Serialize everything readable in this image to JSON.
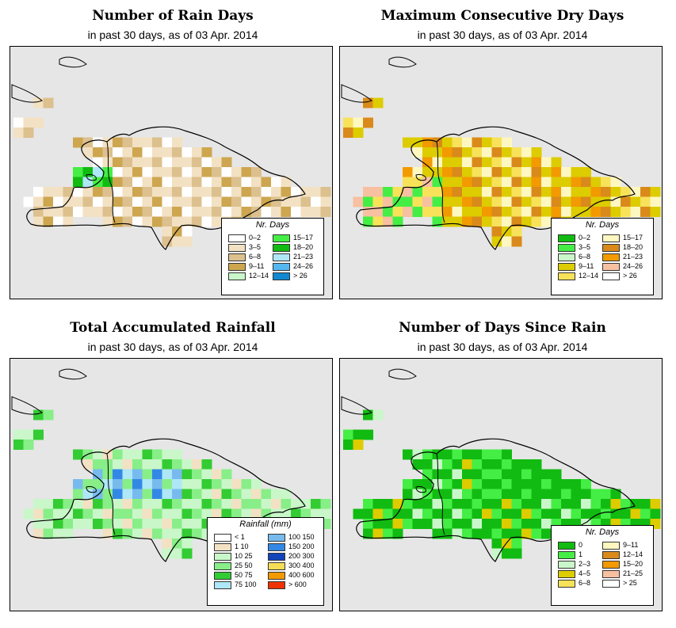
{
  "colors": {
    "map_background": "#e6e6e6",
    "coastline": "#000000"
  },
  "panels": [
    {
      "id": "rain-days",
      "title": "Number of Rain Days",
      "subtitle": "in past 30 days, as of  03 Apr. 2014",
      "legend": {
        "title": "Nr. Days",
        "items": [
          {
            "label": "0–2",
            "color": "#ffffff"
          },
          {
            "label": "3–5",
            "color": "#f3e1c3"
          },
          {
            "label": "6–8",
            "color": "#dcc08e"
          },
          {
            "label": "9–11",
            "color": "#cda64f"
          },
          {
            "label": "12–14",
            "color": "#c9f7c9"
          },
          {
            "label": "15–17",
            "color": "#44ee44"
          },
          {
            "label": "18–20",
            "color": "#11bb11"
          },
          {
            "label": "21–23",
            "color": "#aee7f7"
          },
          {
            "label": "24–26",
            "color": "#55b7f0"
          },
          {
            "label": "> 26",
            "color": "#1188d0"
          }
        ]
      }
    },
    {
      "id": "max-dry-days",
      "title": "Maximum Consecutive Dry Days",
      "subtitle": "in past 30 days, as of  03 Apr. 2014",
      "legend": {
        "title": "Nr. Days",
        "items": [
          {
            "label": "0–2",
            "color": "#11bb11"
          },
          {
            "label": "3–5",
            "color": "#44ee44"
          },
          {
            "label": "6–8",
            "color": "#c9f7c9"
          },
          {
            "label": "9–11",
            "color": "#ddcc00"
          },
          {
            "label": "12–14",
            "color": "#f7e25a"
          },
          {
            "label": "15–17",
            "color": "#fff7c0"
          },
          {
            "label": "18–20",
            "color": "#d98a1a"
          },
          {
            "label": "21–23",
            "color": "#f29a00"
          },
          {
            "label": "24–26",
            "color": "#f7c0a0"
          },
          {
            "label": "> 26",
            "color": "#ffffff"
          }
        ]
      }
    },
    {
      "id": "total-rainfall",
      "title": "Total Accumulated Rainfall",
      "subtitle": "in past 30 days, as of  03 Apr. 2014",
      "legend": {
        "title": "Rainfall (mm)",
        "items": [
          {
            "label": "< 1",
            "color": "#ffffff"
          },
          {
            "label": "1    10",
            "color": "#f3e1c3"
          },
          {
            "label": "10    25",
            "color": "#c9f7c9"
          },
          {
            "label": "25    50",
            "color": "#88ee88"
          },
          {
            "label": "50    75",
            "color": "#33cc33"
          },
          {
            "label": "75   100",
            "color": "#aee7f7"
          },
          {
            "label": "100   150",
            "color": "#77bbee"
          },
          {
            "label": "150   200",
            "color": "#3388e6"
          },
          {
            "label": "200   300",
            "color": "#1144bb"
          },
          {
            "label": "300   400",
            "color": "#f7dd55"
          },
          {
            "label": "400   600",
            "color": "#f29a00"
          },
          {
            "label": "> 600",
            "color": "#ee3300"
          }
        ]
      }
    },
    {
      "id": "days-since-rain",
      "title": "Number of Days Since Rain",
      "subtitle": "in past 30 days, as of  03 Apr. 2014",
      "legend": {
        "title": "Nr. Days",
        "items": [
          {
            "label": "0",
            "color": "#11bb11"
          },
          {
            "label": "1",
            "color": "#44ee44"
          },
          {
            "label": "2–3",
            "color": "#c9f7c9"
          },
          {
            "label": "4–5",
            "color": "#ddcc00"
          },
          {
            "label": "6–8",
            "color": "#f7e25a"
          },
          {
            "label": "9–11",
            "color": "#fff7c0"
          },
          {
            "label": "12–14",
            "color": "#d98a1a"
          },
          {
            "label": "15–20",
            "color": "#f29a00"
          },
          {
            "label": "21–25",
            "color": "#f7c0a0"
          },
          {
            "label": "> 25",
            "color": "#ffffff"
          }
        ]
      }
    }
  ]
}
